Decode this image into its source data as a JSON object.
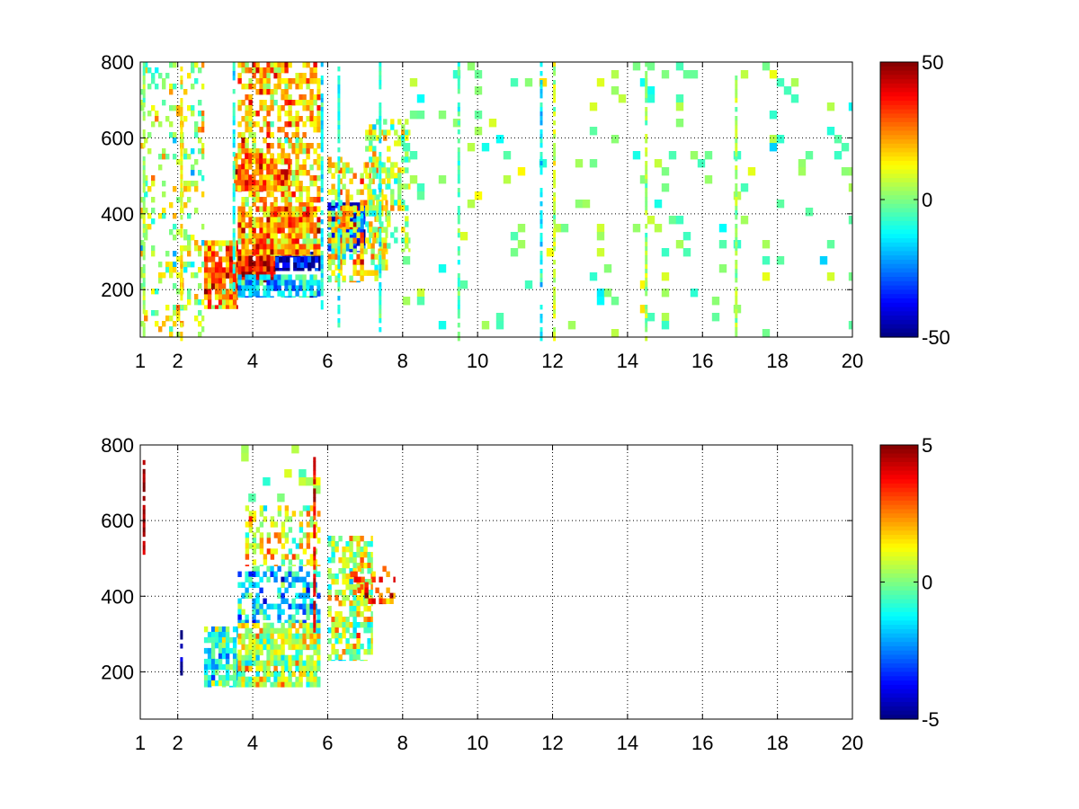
{
  "figure": {
    "background": "#ffffff",
    "colormap": "jet"
  },
  "chart_data": [
    {
      "type": "heatmap",
      "title": "",
      "xlabel": "",
      "ylabel": "",
      "xlim": [
        1,
        20
      ],
      "ylim": [
        75,
        800
      ],
      "grid": true,
      "xticks": [
        1,
        2,
        4,
        6,
        8,
        10,
        12,
        14,
        16,
        18,
        20
      ],
      "xtick_labels": [
        "1",
        "2",
        "4",
        "6",
        "8",
        "10",
        "12",
        "14",
        "16",
        "18",
        "20"
      ],
      "yticks": [
        200,
        400,
        600,
        800
      ],
      "ytick_labels": [
        "200",
        "400",
        "600",
        "800"
      ],
      "colorbar": {
        "clim": [
          -50,
          50
        ],
        "ticks": [
          -50,
          0,
          50
        ],
        "tick_labels": [
          "-50",
          "0",
          "50"
        ]
      },
      "regions": [
        {
          "x": [
            2.7,
            3.6
          ],
          "y": [
            150,
            330
          ],
          "value": 25,
          "density": 0.9
        },
        {
          "x": [
            3.6,
            4.6
          ],
          "y": [
            220,
            290
          ],
          "value": 40,
          "density": 0.95
        },
        {
          "x": [
            4.6,
            5.8
          ],
          "y": [
            250,
            300
          ],
          "value": -40,
          "density": 0.95
        },
        {
          "x": [
            3.6,
            5.8
          ],
          "y": [
            180,
            240
          ],
          "value": -15,
          "density": 0.7
        },
        {
          "x": [
            3.6,
            5.8
          ],
          "y": [
            290,
            420
          ],
          "value": 22,
          "density": 0.85
        },
        {
          "x": [
            3.6,
            5.8
          ],
          "y": [
            420,
            800
          ],
          "value": 18,
          "density": 0.6
        },
        {
          "x": [
            3.5,
            5.0
          ],
          "y": [
            460,
            560
          ],
          "value": 28,
          "density": 0.8
        },
        {
          "x": [
            6.0,
            7.0
          ],
          "y": [
            300,
            430
          ],
          "value": -35,
          "density": 0.9
        },
        {
          "x": [
            6.2,
            6.8
          ],
          "y": [
            360,
            420
          ],
          "value": 30,
          "density": 0.8
        },
        {
          "x": [
            6.0,
            7.6
          ],
          "y": [
            220,
            550
          ],
          "value": 12,
          "density": 0.45
        },
        {
          "x": [
            7.0,
            8.2
          ],
          "y": [
            300,
            650
          ],
          "value": 5,
          "density": 0.35
        },
        {
          "x": [
            1.0,
            2.7
          ],
          "y": [
            75,
            800
          ],
          "value": 5,
          "density": 0.25
        },
        {
          "x": [
            8.0,
            20.0
          ],
          "y": [
            75,
            800
          ],
          "value": 0,
          "density": 0.07
        }
      ],
      "vertical_streaks": [
        {
          "x": 1.1,
          "y": [
            75,
            800
          ],
          "value": 3
        },
        {
          "x": 2.1,
          "y": [
            75,
            800
          ],
          "value": 12
        },
        {
          "x": 3.5,
          "y": [
            200,
            800
          ],
          "value": -10
        },
        {
          "x": 5.85,
          "y": [
            150,
            800
          ],
          "value": -12
        },
        {
          "x": 6.3,
          "y": [
            100,
            800
          ],
          "value": -10
        },
        {
          "x": 7.4,
          "y": [
            100,
            800
          ],
          "value": -8
        },
        {
          "x": 9.5,
          "y": [
            75,
            800
          ],
          "value": -4
        },
        {
          "x": 11.7,
          "y": [
            75,
            800
          ],
          "value": -14
        },
        {
          "x": 12.05,
          "y": [
            75,
            800
          ],
          "value": 6
        },
        {
          "x": 14.5,
          "y": [
            75,
            800
          ],
          "value": 2
        },
        {
          "x": 16.9,
          "y": [
            75,
            800
          ],
          "value": 4
        }
      ]
    },
    {
      "type": "heatmap",
      "title": "",
      "xlabel": "",
      "ylabel": "",
      "xlim": [
        1,
        20
      ],
      "ylim": [
        75,
        800
      ],
      "grid": true,
      "xticks": [
        1,
        2,
        4,
        6,
        8,
        10,
        12,
        14,
        16,
        18,
        20
      ],
      "xtick_labels": [
        "1",
        "2",
        "4",
        "6",
        "8",
        "10",
        "12",
        "14",
        "16",
        "18",
        "20"
      ],
      "yticks": [
        200,
        400,
        600,
        800
      ],
      "ytick_labels": [
        "200",
        "400",
        "600",
        "800"
      ],
      "colorbar": {
        "clim": [
          -5,
          5
        ],
        "ticks": [
          -5,
          0,
          5
        ],
        "tick_labels": [
          "-5",
          "0",
          "5"
        ]
      },
      "regions": [
        {
          "x": [
            2.7,
            3.6
          ],
          "y": [
            160,
            320
          ],
          "value": -1,
          "density": 0.8
        },
        {
          "x": [
            3.6,
            5.8
          ],
          "y": [
            160,
            330
          ],
          "value": 0.5,
          "density": 0.85
        },
        {
          "x": [
            3.6,
            5.8
          ],
          "y": [
            330,
            480
          ],
          "value": -1.5,
          "density": 0.55
        },
        {
          "x": [
            3.8,
            5.8
          ],
          "y": [
            480,
            640
          ],
          "value": 1,
          "density": 0.4
        },
        {
          "x": [
            3.5,
            5.8
          ],
          "y": [
            640,
            800
          ],
          "value": 0.5,
          "density": 0.12
        },
        {
          "x": [
            6.0,
            7.2
          ],
          "y": [
            230,
            560
          ],
          "value": 0.5,
          "density": 0.65
        },
        {
          "x": [
            6.6,
            7.8
          ],
          "y": [
            380,
            480
          ],
          "value": 3,
          "density": 0.35
        }
      ],
      "vertical_streaks": [
        {
          "x": 1.1,
          "y": [
            520,
            760
          ],
          "value": 5
        },
        {
          "x": 2.1,
          "y": [
            200,
            310
          ],
          "value": -5
        },
        {
          "x": 5.65,
          "y": [
            300,
            780
          ],
          "value": 4
        }
      ]
    }
  ]
}
